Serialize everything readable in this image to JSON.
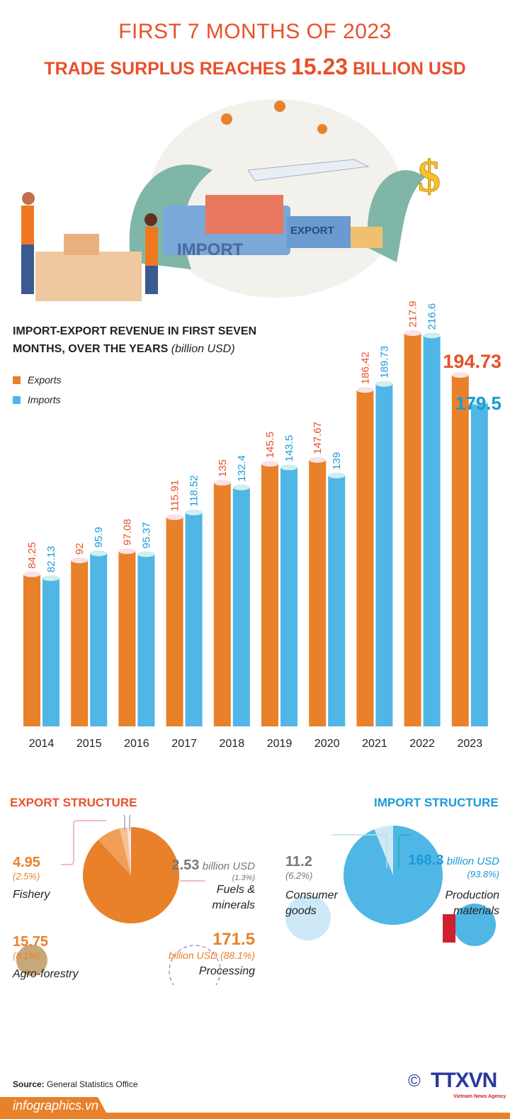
{
  "header": {
    "line1": "FIRST 7 MONTHS OF 2023",
    "line2_pre": "TRADE SURPLUS REACHES ",
    "line2_value": "15.23",
    "line2_post": " BILLION USD"
  },
  "illustration": {
    "import_sign": "IMPORT",
    "export_sign": "EXPORT",
    "dollar": "$"
  },
  "colors": {
    "exports": "#e8812a",
    "imports": "#4fb6e6",
    "title": "#e8502a",
    "import_title": "#1a9ad8"
  },
  "chart_data": {
    "type": "bar",
    "title": "IMPORT-EXPORT REVENUE IN FIRST SEVEN MONTHS, OVER THE YEARS",
    "unit": "(billion USD)",
    "categories": [
      "2014",
      "2015",
      "2016",
      "2017",
      "2018",
      "2019",
      "2020",
      "2021",
      "2022",
      "2023"
    ],
    "series": [
      {
        "name": "Exports",
        "values": [
          84.25,
          92,
          97.08,
          115.91,
          135,
          145.5,
          147.67,
          186.42,
          217.9,
          194.73
        ],
        "labels": [
          "84.25",
          "92",
          "97.08",
          "115.91",
          "135",
          "145.5",
          "147.67",
          "186.42",
          "217.9",
          "194.73"
        ]
      },
      {
        "name": "Imports",
        "values": [
          82.13,
          95.9,
          95.37,
          118.52,
          132.4,
          143.5,
          139,
          189.73,
          216.6,
          179.5
        ],
        "labels": [
          "82.13",
          "95.9",
          "95.37",
          "118.52",
          "132.4",
          "143.5",
          "139",
          "189.73",
          "216.6",
          "179.5"
        ]
      }
    ],
    "legend": "top-left",
    "grid": false
  },
  "export_structure": {
    "title": "EXPORT STRUCTURE",
    "slices": [
      {
        "name": "Processing",
        "value": 171.5,
        "value_label": "171.5",
        "unit": "billion USD (88.1%)",
        "percent": 88.1,
        "color": "#e8812a"
      },
      {
        "name": "Agro-forestry",
        "value": 15.75,
        "value_label": "15.75",
        "unit": "(8.1%)",
        "percent": 8.1,
        "color": "#ef9f58"
      },
      {
        "name": "Fishery",
        "value": 4.95,
        "value_label": "4.95",
        "unit": "(2.5%)",
        "percent": 2.5,
        "color": "#f6c391"
      },
      {
        "name": "Fuels & minerals",
        "value": 2.53,
        "value_label": "2.53",
        "unit": "billion USD",
        "pct_label": "(1.3%)",
        "percent": 1.3,
        "color": "#fbe3e8",
        "label_line1": "Fuels &",
        "label_line2": "minerals"
      }
    ]
  },
  "import_structure": {
    "title": "IMPORT STRUCTURE",
    "slices": [
      {
        "name": "Production materials",
        "value": 168.3,
        "value_label": "168.3",
        "unit": "billion USD",
        "pct_label": "(93.8%)",
        "percent": 93.8,
        "color": "#4fb6e6",
        "label_line1": "Production",
        "label_line2": "materials"
      },
      {
        "name": "Consumer goods",
        "value": 11.2,
        "value_label": "11.2",
        "pct_label": "(6.2%)",
        "percent": 6.2,
        "color": "#cde9f7",
        "label_line1": "Consumer",
        "label_line2": "goods"
      }
    ]
  },
  "footer": {
    "source_label": "Source:",
    "source": " General Statistics Office",
    "site": "infographics.vn",
    "copyright": "©",
    "agency": "TTXVN",
    "agency_sub": "Vietnam News Agency"
  }
}
